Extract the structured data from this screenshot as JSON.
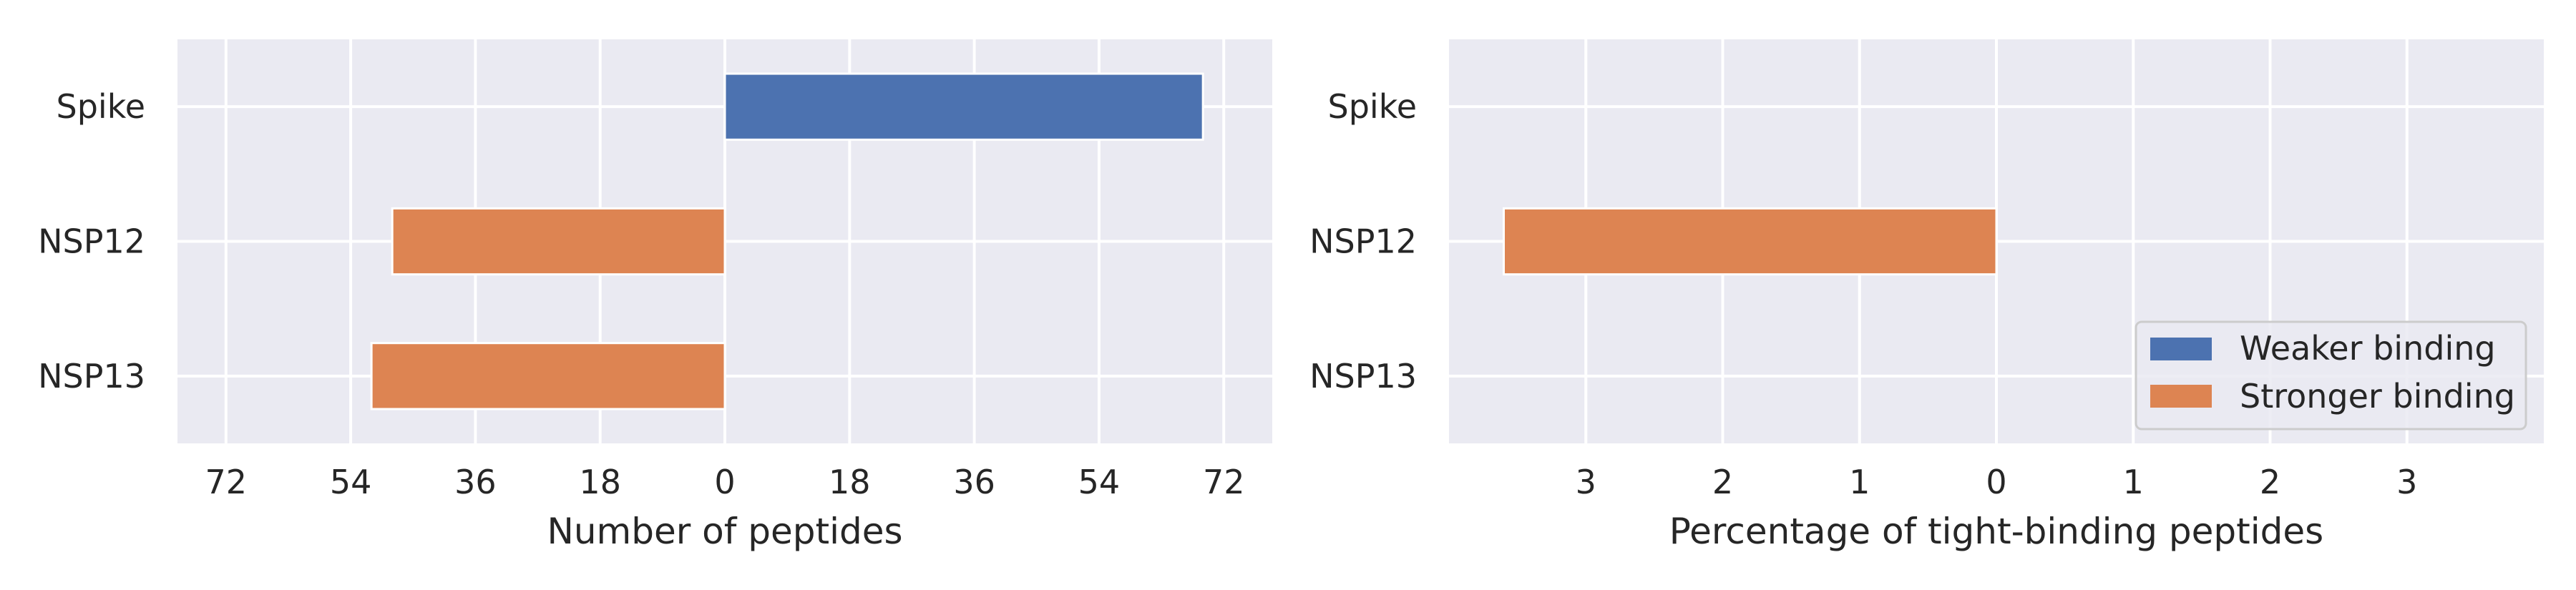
{
  "colors": {
    "weaker": "#4C72B0",
    "stronger": "#DD8452"
  },
  "legend": {
    "weaker_label": "Weaker binding",
    "stronger_label": "Stronger binding"
  },
  "chart_data": [
    {
      "type": "bar",
      "orientation": "horizontal",
      "title": "",
      "xlabel": "Number of peptides",
      "ylabel": "",
      "categories": [
        "Spike",
        "NSP12",
        "NSP13"
      ],
      "series": [
        {
          "name": "Weaker binding",
          "values": [
            69,
            0,
            0
          ],
          "direction": "right"
        },
        {
          "name": "Stronger binding",
          "values": [
            0,
            48,
            51
          ],
          "direction": "left"
        }
      ],
      "xlim": [
        -79,
        79
      ],
      "xticks": [
        -72,
        -54,
        -36,
        -18,
        0,
        18,
        36,
        54,
        72
      ],
      "xtick_labels": [
        "72",
        "54",
        "36",
        "18",
        "0",
        "18",
        "36",
        "54",
        "72"
      ],
      "grid": true
    },
    {
      "type": "bar",
      "orientation": "horizontal",
      "title": "",
      "xlabel": "Percentage of tight-binding peptides",
      "ylabel": "",
      "categories": [
        "Spike",
        "NSP12",
        "NSP13"
      ],
      "series": [
        {
          "name": "Weaker binding",
          "values": [
            0,
            0,
            0
          ],
          "direction": "right"
        },
        {
          "name": "Stronger binding",
          "values": [
            0,
            3.6,
            0
          ],
          "direction": "left"
        }
      ],
      "xlim": [
        -4,
        4
      ],
      "xticks": [
        -3,
        -2,
        -1,
        0,
        1,
        2,
        3
      ],
      "xtick_labels": [
        "3",
        "2",
        "1",
        "0",
        "1",
        "2",
        "3"
      ],
      "grid": true,
      "legend_position": "lower-right"
    }
  ]
}
